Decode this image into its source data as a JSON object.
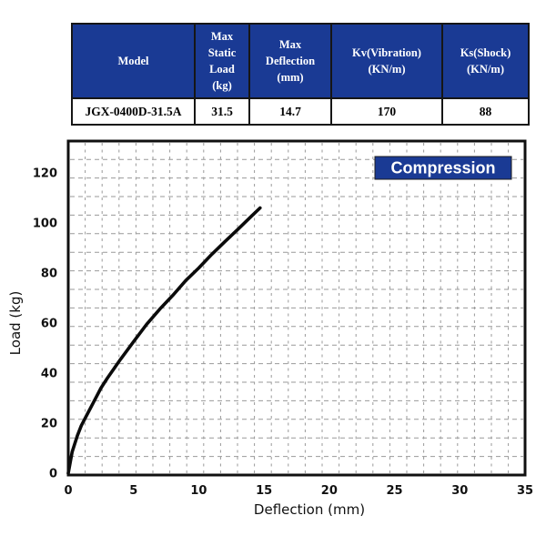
{
  "table": {
    "headers": [
      "Model",
      "Max\nStatic\nLoad\n(kg)",
      "Max\nDeflection\n(mm)",
      "Kv(Vibration)\n(KN/m)",
      "Ks(Shock)\n(KN/m)"
    ],
    "row": [
      "JGX-0400D-31.5A",
      "31.5",
      "14.7",
      "170",
      "88"
    ]
  },
  "colors": {
    "header_bg": "#1a3a94",
    "header_text": "#ffffff",
    "legend_bg": "#1a3a94",
    "grid": "#999999",
    "curve": "#0b0b0b"
  },
  "chart_data": {
    "type": "line",
    "title": "Compression",
    "xlabel": "Deflection (mm)",
    "ylabel": "Load (kg)",
    "xlim": [
      0,
      35
    ],
    "ylim": [
      0,
      133
    ],
    "xticks": [
      0,
      5,
      10,
      15,
      20,
      25,
      30,
      35
    ],
    "yticks": [
      0,
      20,
      40,
      60,
      80,
      100,
      120
    ],
    "grid": "fine dashed gray mesh",
    "legend_position": "top-right navy box",
    "series": [
      {
        "name": "Compression",
        "points": [
          [
            0,
            0
          ],
          [
            0.3,
            8.5
          ],
          [
            0.7,
            15
          ],
          [
            1,
            19
          ],
          [
            1.5,
            24
          ],
          [
            2,
            29
          ],
          [
            2.5,
            34
          ],
          [
            3,
            38
          ],
          [
            4,
            45.5
          ],
          [
            5,
            52.5
          ],
          [
            6,
            59.5
          ],
          [
            7,
            65.5
          ],
          [
            8,
            71
          ],
          [
            9,
            77
          ],
          [
            10,
            82
          ],
          [
            11,
            87.5
          ],
          [
            12,
            92.5
          ],
          [
            13,
            97.5
          ],
          [
            14,
            102.5
          ],
          [
            14.7,
            106
          ]
        ]
      }
    ]
  }
}
